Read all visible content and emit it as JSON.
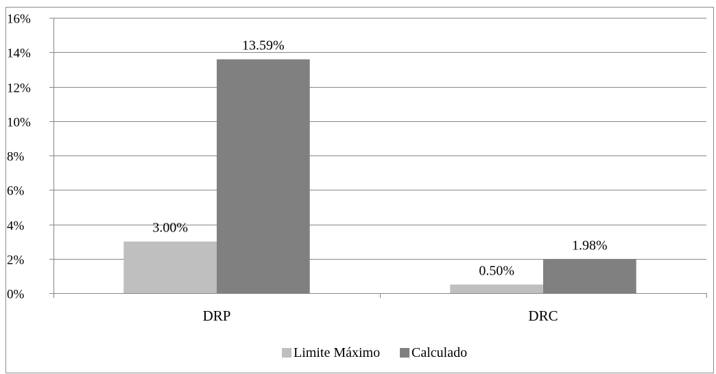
{
  "chart_data": {
    "type": "bar",
    "categories": [
      "DRP",
      "DRC"
    ],
    "series": [
      {
        "name": "Limite Máximo",
        "values": [
          3.0,
          0.5
        ],
        "labels": [
          "3.00%",
          "0.50%"
        ],
        "color": "#bfbfbf"
      },
      {
        "name": "Calculado",
        "values": [
          13.59,
          1.98
        ],
        "labels": [
          "13.59%",
          "1.98%"
        ],
        "color": "#808080"
      }
    ],
    "ylim": [
      0,
      16
    ],
    "yticks": [
      0,
      2,
      4,
      6,
      8,
      10,
      12,
      14,
      16
    ],
    "ytick_labels": [
      "0%",
      "2%",
      "4%",
      "6%",
      "8%",
      "10%",
      "12%",
      "14%",
      "16%"
    ],
    "grid": true,
    "legend_position": "bottom",
    "title": "",
    "xlabel": "",
    "ylabel": ""
  }
}
